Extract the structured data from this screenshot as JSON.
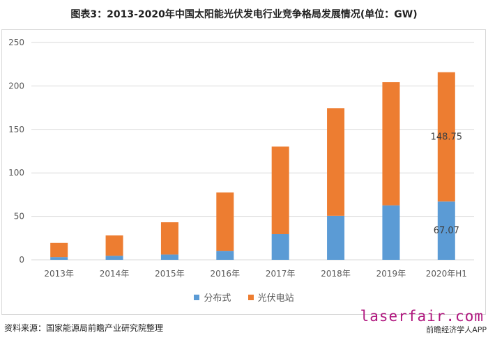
{
  "title": "图表3：2013-2020年中国太阳能光伏发电行业竞争格局发展情况(单位：GW)",
  "chart_data": {
    "type": "bar",
    "stacked": true,
    "categories": [
      "2013年",
      "2014年",
      "2015年",
      "2016年",
      "2017年",
      "2018年",
      "2019年",
      "2020年H1"
    ],
    "series": [
      {
        "name": "分布式",
        "color": "#5b9bd5",
        "values": [
          3.1,
          4.67,
          6.06,
          10.32,
          29.66,
          50.61,
          62.63,
          67.07
        ]
      },
      {
        "name": "光伏电站",
        "color": "#ed7d31",
        "values": [
          16.32,
          23.38,
          37.12,
          67.1,
          100.59,
          123.84,
          141.67,
          148.75
        ]
      }
    ],
    "data_labels": [
      {
        "category": "2020年H1",
        "series": "分布式",
        "text": "67.07"
      },
      {
        "category": "2020年H1",
        "series": "光伏电站",
        "text": "148.75"
      }
    ],
    "ylim": [
      0,
      250
    ],
    "yticks": [
      0,
      50,
      100,
      150,
      200,
      250
    ],
    "grid": true,
    "legend": "bottom"
  },
  "source": "资料来源：国家能源局前瞻产业研究院整理",
  "brand": "laserfair.com",
  "brand_sub": "前瞻经济学人APP"
}
